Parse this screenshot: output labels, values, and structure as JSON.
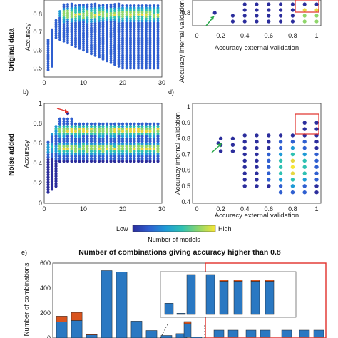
{
  "row_labels": {
    "top": "Original data",
    "middle": "Noise added"
  },
  "panel_letters": {
    "b": "b)",
    "d": "d)",
    "e": "e)"
  },
  "colormap": [
    "#2b2d9c",
    "#2f5fd0",
    "#1f9ad6",
    "#2fc1b2",
    "#8fd66a",
    "#e6d640",
    "#f7e637"
  ],
  "colorbar": {
    "low_label": "Low",
    "high_label": "High",
    "title": "Number of models"
  },
  "marker_colors": {
    "red_arrow": "#e0302a",
    "green_arrow": "#2aa84a",
    "highlight_box": "#e0302a"
  },
  "chart_data": [
    {
      "type": "scatter",
      "panel": "a",
      "xlabel": "",
      "ylabel": "Accuracy",
      "xlim": [
        0,
        30
      ],
      "ylim": [
        0.45,
        0.88
      ],
      "xticks": [
        "0",
        "10",
        "20",
        "30"
      ],
      "yticks": [
        "0.5",
        "0.6",
        "0.7",
        "0.8"
      ]
    },
    {
      "type": "scatter",
      "panel": "c",
      "xlabel": "Accuracy external validation",
      "ylabel": "Accuracy internal validation",
      "xlim": [
        0,
        1
      ],
      "ylim": [
        0.74,
        0.88
      ],
      "xticks": [
        "0",
        "0.2",
        "0.4",
        "0.6",
        "0.8",
        "1"
      ],
      "yticks": [
        "0.8"
      ]
    },
    {
      "type": "scatter",
      "panel": "b",
      "xlabel": "",
      "ylabel": "Accuracy",
      "xlim": [
        0,
        30
      ],
      "ylim": [
        0,
        1
      ],
      "xticks": [
        "0",
        "10",
        "20",
        "30"
      ],
      "yticks": [
        "0",
        "0.2",
        "0.4",
        "0.6",
        "0.8",
        "1"
      ]
    },
    {
      "type": "scatter",
      "panel": "d",
      "xlabel": "Accuracy external validation",
      "ylabel": "Accuracy internal validation",
      "xlim": [
        0,
        1
      ],
      "ylim": [
        0.4,
        1
      ],
      "xticks": [
        "0",
        "0.2",
        "0.4",
        "0.6",
        "0.8",
        "1"
      ],
      "yticks": [
        "0.4",
        "0.5",
        "0.6",
        "0.7",
        "0.8",
        "0.9",
        "1"
      ]
    },
    {
      "type": "bar",
      "panel": "e",
      "title": "Number of combinations giving accuracy higher than 0.8",
      "xlabel": "",
      "ylabel": "Number of combinations",
      "ylim": [
        0,
        600
      ],
      "yticks": [
        "0",
        "200",
        "400",
        "600"
      ],
      "series": [
        {
          "values": [
            130,
            140,
            25,
            540,
            530,
            135,
            60,
            20,
            35,
            10
          ]
        },
        {
          "values": [
            45,
            65,
            5,
            0,
            0,
            0,
            0,
            0,
            0,
            0
          ]
        }
      ],
      "series_colors": [
        "#2a78c2",
        "#d9541e"
      ]
    },
    {
      "type": "bar",
      "panel": "e-inset",
      "series": [
        {
          "values": [
            28,
            3,
            100,
            100,
            83,
            83,
            83,
            83
          ]
        },
        {
          "values": [
            0,
            0,
            0,
            0,
            4,
            4,
            4,
            4
          ]
        }
      ],
      "series_colors": [
        "#2a78c2",
        "#d9541e"
      ]
    }
  ]
}
